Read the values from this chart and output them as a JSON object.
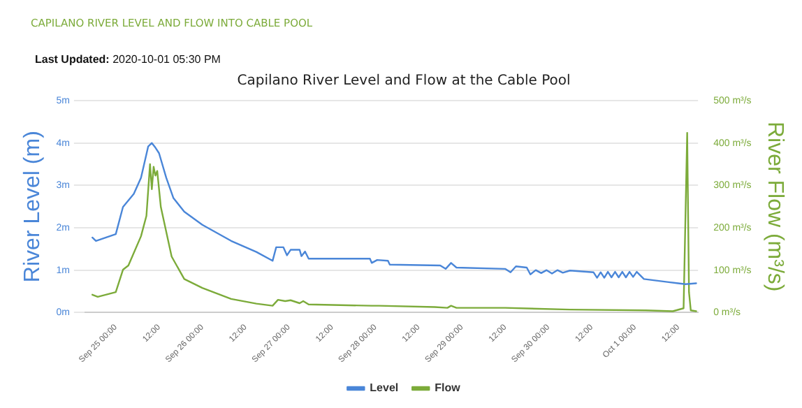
{
  "chart_data": {
    "type": "line",
    "title": "Capilano River Level and Flow at the Cable Pool",
    "annotations": [
      "CAPILANO RIVER LEVEL AND FLOW INTO CABLE POOL",
      "Last Updated: 2020-10-01 05:30 PM"
    ],
    "ylabel": "River Level (m)",
    "y2label": "River Flow (m³/s)",
    "xlim": [
      "2020-09-24T15:30",
      "2020-10-01T17:30"
    ],
    "xticks": [
      {
        "value": "2020-09-25T00:00",
        "label": "Sep 25 00:00"
      },
      {
        "value": "2020-09-25T12:00",
        "label": "12:00"
      },
      {
        "value": "2020-09-26T00:00",
        "label": "Sep 26 00:00"
      },
      {
        "value": "2020-09-26T12:00",
        "label": "12:00"
      },
      {
        "value": "2020-09-27T00:00",
        "label": "Sep 27 00:00"
      },
      {
        "value": "2020-09-27T12:00",
        "label": "12:00"
      },
      {
        "value": "2020-09-28T00:00",
        "label": "Sep 28 00:00"
      },
      {
        "value": "2020-09-28T12:00",
        "label": "12:00"
      },
      {
        "value": "2020-09-29T00:00",
        "label": "Sep 29 00:00"
      },
      {
        "value": "2020-09-29T12:00",
        "label": "12:00"
      },
      {
        "value": "2020-09-30T00:00",
        "label": "Sep 30 00:00"
      },
      {
        "value": "2020-09-30T12:00",
        "label": "12:00"
      },
      {
        "value": "2020-10-01T00:00",
        "label": "Oct 1 00:00"
      },
      {
        "value": "2020-10-01T12:00",
        "label": "12:00"
      }
    ],
    "ylim": [
      0,
      5
    ],
    "yticks": [
      {
        "value": 0,
        "label": "0m"
      },
      {
        "value": 1,
        "label": "1m"
      },
      {
        "value": 2,
        "label": "2m"
      },
      {
        "value": 3,
        "label": "3m"
      },
      {
        "value": 4,
        "label": "4m"
      },
      {
        "value": 5,
        "label": "5m"
      }
    ],
    "y2lim": [
      0,
      500
    ],
    "y2ticks": [
      {
        "value": 0,
        "label": "0 m³/s"
      },
      {
        "value": 100,
        "label": "100 m³/s"
      },
      {
        "value": 200,
        "label": "200 m³/s"
      },
      {
        "value": 300,
        "label": "300 m³/s"
      },
      {
        "value": 400,
        "label": "400 m³/s"
      },
      {
        "value": 500,
        "label": "500 m³/s"
      }
    ],
    "grid": "y",
    "legend": "bottom",
    "series": [
      {
        "name": "Level",
        "color": "#4a86d8",
        "x": [
          "2020-09-24T17:30",
          "2020-09-24T18:30",
          "2020-09-25T00:00",
          "2020-09-25T02:00",
          "2020-09-25T05:00",
          "2020-09-25T07:00",
          "2020-09-25T09:00",
          "2020-09-25T10:00",
          "2020-09-25T11:00",
          "2020-09-25T12:00",
          "2020-09-25T14:00",
          "2020-09-25T16:00",
          "2020-09-25T19:00",
          "2020-09-26T00:00",
          "2020-09-26T08:00",
          "2020-09-26T15:00",
          "2020-09-26T19:30",
          "2020-09-26T20:30",
          "2020-09-26T22:30",
          "2020-09-26T23:30",
          "2020-09-27T00:30",
          "2020-09-27T03:00",
          "2020-09-27T03:30",
          "2020-09-27T04:30",
          "2020-09-27T05:30",
          "2020-09-27T22:30",
          "2020-09-27T23:00",
          "2020-09-28T00:30",
          "2020-09-28T03:30",
          "2020-09-28T04:00",
          "2020-09-28T18:00",
          "2020-09-28T19:30",
          "2020-09-28T21:00",
          "2020-09-28T22:30",
          "2020-09-29T12:00",
          "2020-09-29T13:30",
          "2020-09-29T15:00",
          "2020-09-29T18:00",
          "2020-09-29T19:00",
          "2020-09-29T20:30",
          "2020-09-29T22:00",
          "2020-09-29T23:30",
          "2020-09-30T01:00",
          "2020-09-30T02:30",
          "2020-09-30T04:00",
          "2020-09-30T06:00",
          "2020-09-30T12:30",
          "2020-09-30T13:30",
          "2020-09-30T14:30",
          "2020-09-30T15:30",
          "2020-09-30T16:30",
          "2020-09-30T17:30",
          "2020-09-30T18:30",
          "2020-09-30T19:30",
          "2020-09-30T20:30",
          "2020-09-30T21:30",
          "2020-09-30T22:30",
          "2020-09-30T23:30",
          "2020-10-01T00:30",
          "2020-10-01T02:30",
          "2020-10-01T09:00",
          "2020-10-01T12:00",
          "2020-10-01T14:00",
          "2020-10-01T17:00"
        ],
        "values": [
          1.77,
          1.69,
          1.85,
          2.49,
          2.8,
          3.18,
          3.92,
          4.0,
          3.89,
          3.76,
          3.18,
          2.7,
          2.38,
          2.07,
          1.69,
          1.43,
          1.22,
          1.54,
          1.54,
          1.35,
          1.48,
          1.48,
          1.33,
          1.44,
          1.27,
          1.27,
          1.17,
          1.24,
          1.22,
          1.13,
          1.11,
          1.03,
          1.17,
          1.06,
          1.03,
          0.95,
          1.09,
          1.06,
          0.9,
          1.0,
          0.93,
          1.0,
          0.92,
          1.0,
          0.94,
          0.99,
          0.95,
          0.82,
          0.95,
          0.82,
          0.96,
          0.83,
          0.96,
          0.83,
          0.96,
          0.83,
          0.96,
          0.84,
          0.96,
          0.79,
          0.72,
          0.69,
          0.67,
          0.69
        ]
      },
      {
        "name": "Flow",
        "color": "#7cab3a",
        "axis": "y2",
        "x": [
          "2020-09-24T17:30",
          "2020-09-24T19:00",
          "2020-09-25T00:00",
          "2020-09-25T02:00",
          "2020-09-25T03:30",
          "2020-09-25T07:00",
          "2020-09-25T08:30",
          "2020-09-25T09:30",
          "2020-09-25T10:00",
          "2020-09-25T10:30",
          "2020-09-25T11:00",
          "2020-09-25T11:30",
          "2020-09-25T12:30",
          "2020-09-25T15:30",
          "2020-09-25T19:00",
          "2020-09-26T00:00",
          "2020-09-26T08:00",
          "2020-09-26T15:00",
          "2020-09-26T19:30",
          "2020-09-26T21:00",
          "2020-09-26T23:00",
          "2020-09-27T00:30",
          "2020-09-27T03:00",
          "2020-09-27T04:00",
          "2020-09-27T05:30",
          "2020-09-27T23:00",
          "2020-09-28T01:00",
          "2020-09-28T16:30",
          "2020-09-28T20:00",
          "2020-09-28T21:00",
          "2020-09-28T22:30",
          "2020-09-29T12:00",
          "2020-09-30T06:00",
          "2020-10-01T03:00",
          "2020-10-01T10:30",
          "2020-10-01T13:30",
          "2020-10-01T14:30",
          "2020-10-01T15:00",
          "2020-10-01T15:30",
          "2020-10-01T17:00"
        ],
        "values": [
          42,
          37,
          48,
          101,
          111,
          180,
          228,
          350,
          291,
          344,
          323,
          334,
          249,
          132,
          79,
          58,
          32,
          21,
          16,
          30,
          27,
          29,
          22,
          27,
          19,
          16,
          16,
          13,
          11,
          16,
          11,
          11,
          7,
          5,
          3,
          10,
          424,
          48,
          5,
          3
        ]
      }
    ]
  }
}
